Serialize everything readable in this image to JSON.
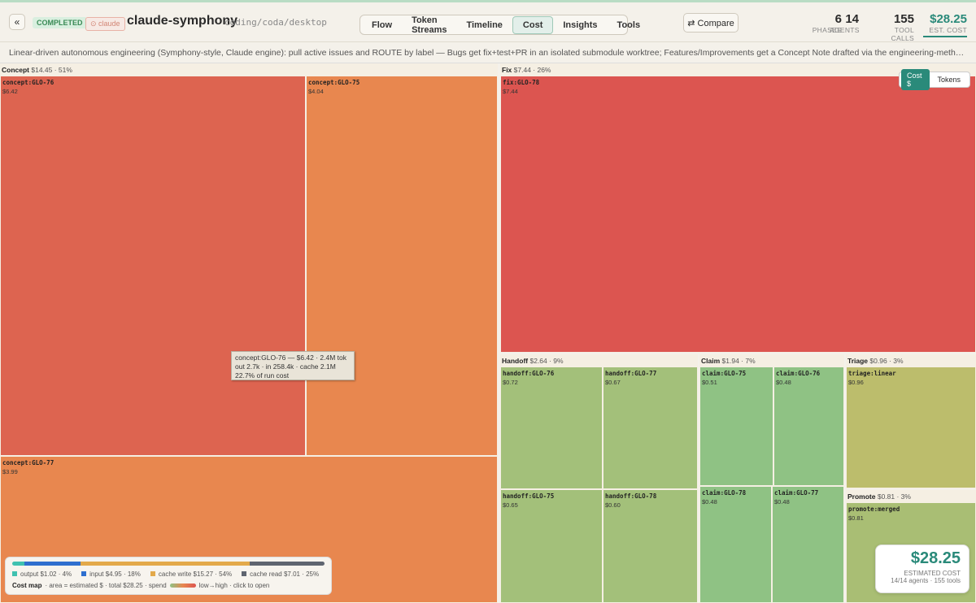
{
  "header": {
    "back": "«",
    "status": "COMPLETED",
    "engine": "⊙ claude",
    "title": "claude-symphony",
    "path": "coding/coda/desktop",
    "tabs": [
      "Flow",
      "Token Streams",
      "Timeline",
      "Cost",
      "Insights",
      "Tools"
    ],
    "compare": "⇄ Compare",
    "stats": [
      {
        "value": "6",
        "label": "PHASES"
      },
      {
        "value": "14",
        "label": "AGENTS"
      },
      {
        "value": "155",
        "label": "TOOL CALLS"
      },
      {
        "value": "$28.25",
        "label": "EST. COST"
      }
    ]
  },
  "description": "Linear-driven autonomous engineering (Symphony-style, Claude engine): pull active issues and ROUTE by label — Bugs get fix+test+PR in an isolated submodule worktree; Features/Improvements get a Concept Note drafted via the engineering-methodology skill. Han...",
  "treemap": {
    "groups": [
      {
        "name": "Concept",
        "summary": "$14.45 · 51%",
        "tiles": [
          {
            "label": "concept:GLO-76",
            "cost": "$6.42"
          },
          {
            "label": "concept:GLO-75",
            "cost": "$4.04"
          },
          {
            "label": "concept:GLO-77",
            "cost": "$3.99"
          }
        ]
      },
      {
        "name": "Fix",
        "summary": "$7.44 · 26%",
        "tiles": [
          {
            "label": "fix:GLO-78",
            "cost": "$7.44"
          }
        ]
      },
      {
        "name": "Handoff",
        "summary": "$2.64 · 9%",
        "tiles": [
          {
            "label": "handoff:GLO-76",
            "cost": "$0.72"
          },
          {
            "label": "handoff:GLO-77",
            "cost": "$0.67"
          },
          {
            "label": "handoff:GLO-75",
            "cost": "$0.65"
          },
          {
            "label": "handoff:GLO-78",
            "cost": "$0.60"
          }
        ]
      },
      {
        "name": "Claim",
        "summary": "$1.94 · 7%",
        "tiles": [
          {
            "label": "claim:GLO-75",
            "cost": "$0.51"
          },
          {
            "label": "claim:GLO-76",
            "cost": "$0.48"
          },
          {
            "label": "claim:GLO-78",
            "cost": "$0.48"
          },
          {
            "label": "claim:GLO-77",
            "cost": "$0.48"
          }
        ]
      },
      {
        "name": "Triage",
        "summary": "$0.96 · 3%",
        "tiles": [
          {
            "label": "triage:linear",
            "cost": "$0.96"
          }
        ]
      },
      {
        "name": "Promote",
        "summary": "$0.81 · 3%",
        "tiles": [
          {
            "label": "promote:merged",
            "cost": "$0.81"
          }
        ]
      }
    ],
    "toggle": [
      "Cost $",
      "Tokens"
    ],
    "tooltip": [
      "concept:GLO-76 — $6.42 · 2.4M tok",
      "out 2.7k · in 258.4k · cache 2.1M",
      "22.7% of run cost"
    ]
  },
  "legend": {
    "items": [
      "output $1.02 · 4%",
      "input $4.95 · 18%",
      "cache write $15.27 · 54%",
      "cache read $7.01 · 25%"
    ],
    "caption": "Cost map",
    "note": "· area = estimated $ · total $28.25 · spend",
    "scale": "low→high · click to open"
  },
  "summary": {
    "amount": "$28.25",
    "label": "ESTIMATED COST",
    "detail": "14/14 agents · 155 tools"
  }
}
